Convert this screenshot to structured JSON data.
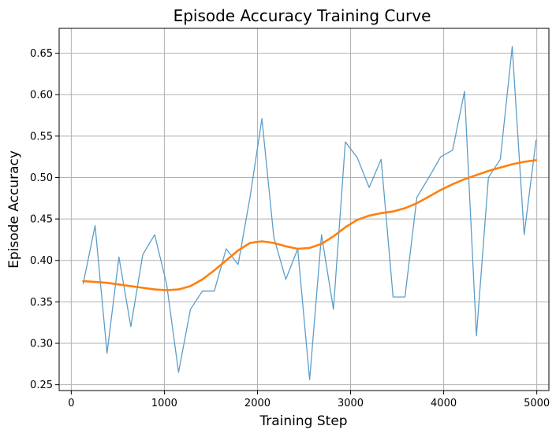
{
  "chart_data": {
    "type": "line",
    "title": "Episode Accuracy Training Curve",
    "xlabel": "Training Step",
    "ylabel": "Episode Accuracy",
    "xlim": [
      -130,
      5130
    ],
    "ylim": [
      0.243,
      0.68
    ],
    "xticks": [
      0,
      1000,
      2000,
      3000,
      4000,
      5000
    ],
    "yticks": [
      0.25,
      0.3,
      0.35,
      0.4,
      0.45,
      0.5,
      0.55,
      0.6,
      0.65
    ],
    "ytick_labels": [
      "0.25",
      "0.30",
      "0.35",
      "0.40",
      "0.45",
      "0.50",
      "0.55",
      "0.60",
      "0.65"
    ],
    "grid": true,
    "series": [
      {
        "color": "#5b9ec9",
        "style": "thin",
        "x": [
          128,
          256,
          384,
          512,
          640,
          768,
          896,
          1024,
          1152,
          1280,
          1408,
          1536,
          1664,
          1792,
          1920,
          2048,
          2176,
          2304,
          2432,
          2560,
          2688,
          2816,
          2944,
          3072,
          3200,
          3328,
          3456,
          3584,
          3712,
          3840,
          3968,
          4096,
          4224,
          4352,
          4480,
          4608,
          4736,
          4864,
          4992
        ],
        "y": [
          0.372,
          0.442,
          0.288,
          0.404,
          0.32,
          0.407,
          0.431,
          0.372,
          0.265,
          0.341,
          0.363,
          0.363,
          0.414,
          0.395,
          0.476,
          0.571,
          0.428,
          0.377,
          0.414,
          0.256,
          0.431,
          0.341,
          0.543,
          0.524,
          0.488,
          0.522,
          0.356,
          0.356,
          0.476,
          0.5,
          0.525,
          0.533,
          0.604,
          0.309,
          0.5,
          0.522,
          0.658,
          0.431,
          0.545
        ]
      },
      {
        "color": "#ff7f0e",
        "style": "thick",
        "x": [
          128,
          256,
          384,
          512,
          640,
          768,
          896,
          1024,
          1152,
          1280,
          1408,
          1536,
          1664,
          1792,
          1920,
          2048,
          2176,
          2304,
          2432,
          2560,
          2688,
          2816,
          2944,
          3072,
          3200,
          3328,
          3456,
          3584,
          3712,
          3840,
          3968,
          4096,
          4224,
          4352,
          4480,
          4608,
          4736,
          4864,
          4992
        ],
        "y": [
          0.375,
          0.374,
          0.373,
          0.371,
          0.369,
          0.367,
          0.365,
          0.364,
          0.365,
          0.369,
          0.377,
          0.388,
          0.4,
          0.412,
          0.421,
          0.423,
          0.421,
          0.417,
          0.414,
          0.415,
          0.42,
          0.429,
          0.44,
          0.449,
          0.454,
          0.457,
          0.459,
          0.463,
          0.469,
          0.477,
          0.485,
          0.492,
          0.498,
          0.503,
          0.508,
          0.512,
          0.516,
          0.519,
          0.521
        ]
      }
    ]
  }
}
